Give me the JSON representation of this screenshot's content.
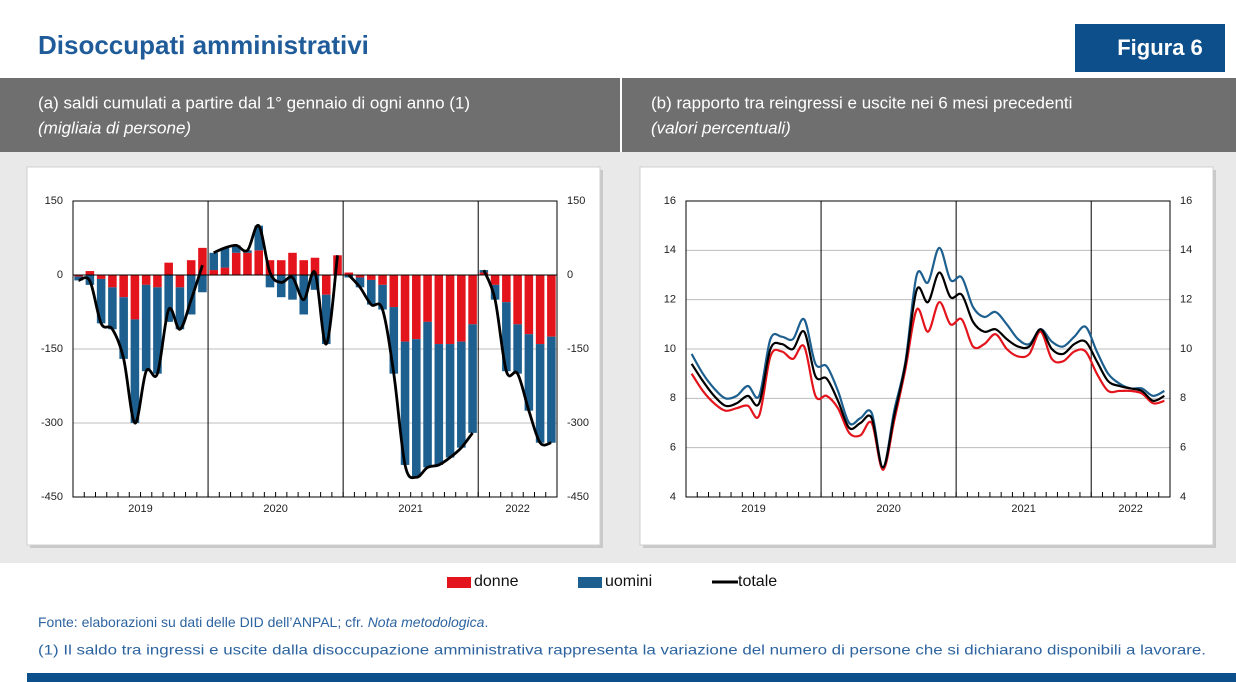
{
  "header": {
    "title": "Disoccupati amministrativi",
    "figure": "Figura 6"
  },
  "chart_data": [
    {
      "type": "bar",
      "title": "(a) saldi cumulati a partire dal 1° gennaio di ogni anno (1)",
      "subtitle": "(migliaia di persone)",
      "categories": [
        "2019",
        null,
        null,
        null,
        null,
        null,
        null,
        null,
        null,
        null,
        null,
        null,
        "2020",
        null,
        null,
        null,
        null,
        null,
        null,
        null,
        null,
        null,
        null,
        null,
        "2021",
        null,
        null,
        null,
        null,
        null,
        null,
        null,
        null,
        null,
        null,
        null,
        "2022",
        null,
        null,
        null,
        null,
        null,
        null
      ],
      "series": [
        {
          "name": "donne",
          "color": "#e3141b",
          "values": [
            -3,
            8,
            -8,
            -25,
            -45,
            -90,
            -20,
            -25,
            25,
            -25,
            30,
            55,
            10,
            15,
            45,
            45,
            50,
            30,
            30,
            45,
            30,
            35,
            -40,
            40,
            5,
            -5,
            -10,
            -20,
            -65,
            -135,
            -130,
            -95,
            -140,
            -140,
            -135,
            -100,
            5,
            -20,
            -55,
            -100,
            -120,
            -140,
            -125
          ]
        },
        {
          "name": "uomini",
          "color": "#1d5f8e",
          "values": [
            -8,
            -20,
            -90,
            -85,
            -125,
            -210,
            -175,
            -175,
            -95,
            -85,
            -80,
            -35,
            35,
            40,
            15,
            5,
            50,
            -25,
            -45,
            -50,
            -80,
            -30,
            -100,
            0,
            -5,
            -20,
            -50,
            -50,
            -135,
            -250,
            -280,
            -295,
            -245,
            -230,
            -215,
            -220,
            5,
            -30,
            -140,
            -100,
            -155,
            -200,
            -215
          ]
        },
        {
          "name": "totale",
          "type": "line",
          "color": "#000000",
          "values": [
            -11,
            -12,
            -98,
            -110,
            -170,
            -300,
            -195,
            -200,
            -70,
            -110,
            -50,
            20,
            45,
            55,
            60,
            50,
            100,
            5,
            -15,
            -5,
            -50,
            5,
            -140,
            40,
            0,
            -25,
            -60,
            -70,
            -200,
            -385,
            -410,
            -390,
            -385,
            -370,
            -350,
            -320,
            10,
            -50,
            -195,
            -200,
            -275,
            -340,
            -340
          ]
        }
      ],
      "line_resets_yearly": true,
      "ylim": [
        -450,
        150
      ],
      "yticks": [
        -450,
        -300,
        -150,
        0,
        150
      ],
      "y2lim": [
        -450,
        150
      ],
      "y2ticks": [
        -450,
        -300,
        -150,
        0,
        150
      ],
      "grid": true
    },
    {
      "type": "line",
      "title": "(b) rapporto tra reingressi e uscite nei 6 mesi precedenti",
      "subtitle": "(valori percentuali)",
      "categories": [
        "2019",
        null,
        null,
        null,
        null,
        null,
        null,
        null,
        null,
        null,
        null,
        null,
        "2020",
        null,
        null,
        null,
        null,
        null,
        null,
        null,
        null,
        null,
        null,
        null,
        "2021",
        null,
        null,
        null,
        null,
        null,
        null,
        null,
        null,
        null,
        null,
        null,
        "2022",
        null,
        null,
        null,
        null,
        null,
        null
      ],
      "series": [
        {
          "color": "#e3141b",
          "values": [
            9.0,
            8.3,
            7.8,
            7.5,
            7.6,
            7.7,
            7.3,
            9.7,
            9.9,
            9.6,
            10.1,
            8.1,
            8.1,
            7.6,
            6.6,
            6.5,
            7.0,
            5.1,
            7.1,
            9.2,
            11.6,
            10.7,
            11.9,
            11.0,
            11.2,
            10.1,
            10.2,
            10.6,
            10.0,
            9.7,
            9.8,
            10.7,
            9.6,
            9.5,
            9.9,
            9.9,
            9.0,
            8.3,
            8.3,
            8.3,
            8.2,
            7.8,
            7.9
          ]
        },
        {
          "color": "#1d5f8e",
          "values": [
            9.8,
            9.0,
            8.4,
            8.0,
            8.1,
            8.5,
            8.1,
            10.4,
            10.5,
            10.4,
            11.2,
            9.4,
            9.3,
            8.3,
            7.0,
            7.2,
            7.4,
            5.2,
            7.5,
            9.5,
            13.0,
            12.7,
            14.1,
            12.8,
            12.9,
            11.7,
            11.3,
            11.5,
            11.0,
            10.4,
            10.2,
            10.8,
            10.3,
            10.1,
            10.5,
            10.9,
            9.9,
            9.0,
            8.6,
            8.4,
            8.4,
            8.1,
            8.3
          ]
        },
        {
          "color": "#000000",
          "values": [
            9.4,
            8.7,
            8.1,
            7.7,
            7.8,
            8.1,
            7.8,
            10.0,
            10.2,
            10.0,
            10.7,
            8.9,
            8.8,
            7.9,
            6.8,
            7.0,
            7.2,
            5.2,
            7.3,
            9.4,
            12.4,
            11.9,
            13.1,
            12.1,
            12.2,
            11.1,
            10.7,
            10.8,
            10.4,
            10.1,
            10.1,
            10.8,
            10.0,
            9.8,
            10.2,
            10.3,
            9.5,
            8.7,
            8.5,
            8.4,
            8.3,
            7.9,
            8.1
          ]
        }
      ],
      "ylim": [
        4,
        16
      ],
      "yticks": [
        4,
        6,
        8,
        10,
        12,
        14,
        16
      ],
      "y2lim": [
        4,
        16
      ],
      "y2ticks": [
        4,
        6,
        8,
        10,
        12,
        14,
        16
      ],
      "grid": true
    }
  ],
  "legend_position": "bottom",
  "notes": {
    "source": [
      "Fonte: elaborazioni su dati delle DID dell’ANPAL; cfr. ",
      "Nota metodologica",
      "."
    ],
    "footnote": "(1) Il saldo tra ingressi e uscite dalla disoccupazione amministrativa rappresenta la variazione del numero di persone che si dichiarano disponibili a lavorare."
  }
}
